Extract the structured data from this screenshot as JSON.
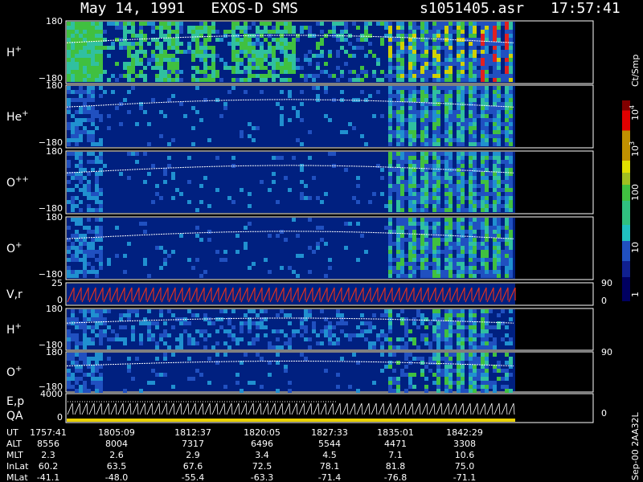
{
  "header": {
    "title": "May 14, 1991   EXOS-D SMS",
    "file": "s1051405.asr",
    "time": "17:57:41"
  },
  "panels": [
    {
      "label": "H",
      "charge": "+",
      "ticks": [
        "180",
        "−180"
      ]
    },
    {
      "label": "He",
      "charge": "+",
      "ticks": [
        "180",
        "−180"
      ]
    },
    {
      "label": "O",
      "charge": "++",
      "ticks": [
        "180",
        "−180"
      ]
    },
    {
      "label": "O",
      "charge": "+",
      "ticks": [
        "180",
        "−180"
      ]
    },
    {
      "label": "V,r",
      "ticks": [
        "25",
        "0"
      ],
      "right_ticks": [
        "90",
        "0"
      ]
    },
    {
      "label": "H",
      "charge": "+",
      "ticks": [
        "180",
        "−180"
      ]
    },
    {
      "label": "O",
      "charge": "+",
      "ticks": [
        "180",
        "−180"
      ],
      "right_ticks": [
        "90"
      ]
    },
    {
      "label": "E,p",
      "label2": "QA",
      "ticks": [
        "4000",
        "0"
      ],
      "right_ticks": [
        "0"
      ]
    }
  ],
  "colorbar": {
    "unit": "Ct/Smp",
    "labels": [
      "1",
      "10",
      "100"
    ],
    "powers": [
      {
        "base": "10",
        "exp": "3"
      },
      {
        "base": "10",
        "exp": "4"
      }
    ]
  },
  "footer": "Sep-00 2AA32L",
  "ephemeris": [
    {
      "name": "UT",
      "values": [
        "1757:41",
        "1805:09",
        "1812:37",
        "1820:05",
        "1827:33",
        "1835:01",
        "1842:29"
      ]
    },
    {
      "name": "ALT",
      "values": [
        "8556",
        "8004",
        "7317",
        "6496",
        "5544",
        "4471",
        "3308"
      ]
    },
    {
      "name": "MLT",
      "values": [
        "2.3",
        "2.6",
        "2.9",
        "3.4",
        "4.5",
        "7.1",
        "10.6"
      ]
    },
    {
      "name": "InLat",
      "values": [
        "60.2",
        "63.5",
        "67.6",
        "72.5",
        "78.1",
        "81.8",
        "75.0"
      ]
    },
    {
      "name": "MLat",
      "values": [
        "-41.1",
        "-48.0",
        "-55.4",
        "-63.3",
        "-71.4",
        "-76.8",
        "-71.1"
      ]
    }
  ]
}
